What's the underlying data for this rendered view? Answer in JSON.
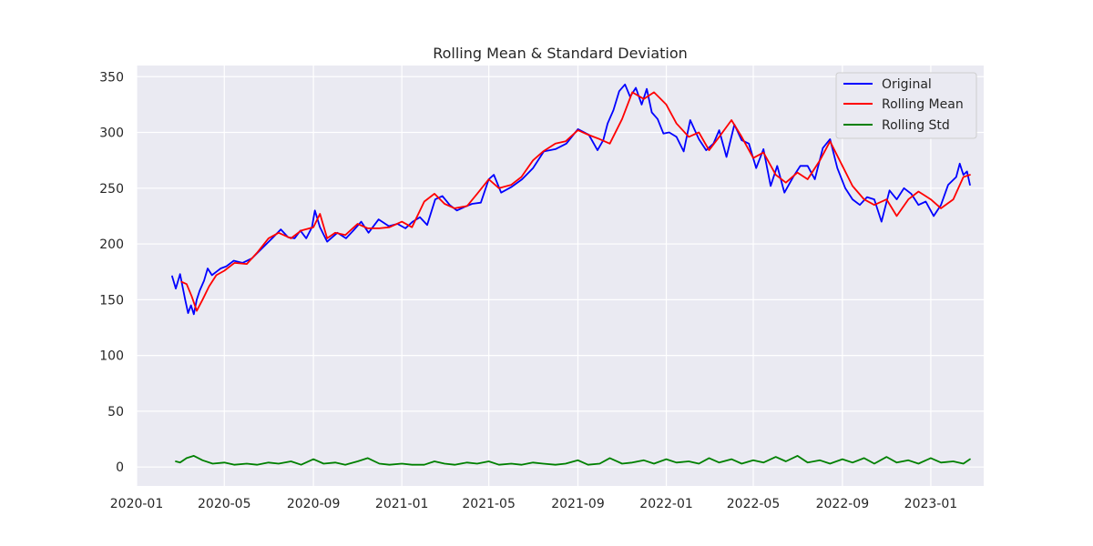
{
  "chart_data": {
    "type": "line",
    "title": "Rolling Mean & Standard Deviation",
    "xlabel": "",
    "ylabel": "",
    "xlim": [
      "2020-01-01",
      "2023-03-15"
    ],
    "ylim": [
      -17,
      360
    ],
    "grid": true,
    "legend_position": "top-right",
    "background_color": "#eaeaf2",
    "x_ticks": [
      {
        "label": "2020-01",
        "date": "2020-01-01"
      },
      {
        "label": "2020-05",
        "date": "2020-05-01"
      },
      {
        "label": "2020-09",
        "date": "2020-09-01"
      },
      {
        "label": "2021-01",
        "date": "2021-01-01"
      },
      {
        "label": "2021-05",
        "date": "2021-05-01"
      },
      {
        "label": "2021-09",
        "date": "2021-09-01"
      },
      {
        "label": "2022-01",
        "date": "2022-01-01"
      },
      {
        "label": "2022-05",
        "date": "2022-05-01"
      },
      {
        "label": "2022-09",
        "date": "2022-09-01"
      },
      {
        "label": "2023-01",
        "date": "2023-01-01"
      }
    ],
    "y_ticks": [
      0,
      50,
      100,
      150,
      200,
      250,
      300,
      350
    ],
    "series": [
      {
        "name": "Original",
        "color": "#0000ff",
        "x": [
          "2020-02-19",
          "2020-02-24",
          "2020-03-01",
          "2020-03-08",
          "2020-03-12",
          "2020-03-16",
          "2020-03-20",
          "2020-03-24",
          "2020-03-28",
          "2020-04-03",
          "2020-04-08",
          "2020-04-14",
          "2020-04-20",
          "2020-04-26",
          "2020-05-04",
          "2020-05-14",
          "2020-05-26",
          "2020-06-08",
          "2020-06-22",
          "2020-07-06",
          "2020-07-18",
          "2020-07-28",
          "2020-08-06",
          "2020-08-14",
          "2020-08-22",
          "2020-08-30",
          "2020-09-03",
          "2020-09-10",
          "2020-09-20",
          "2020-10-04",
          "2020-10-16",
          "2020-10-26",
          "2020-11-06",
          "2020-11-16",
          "2020-11-30",
          "2020-12-14",
          "2020-12-26",
          "2021-01-06",
          "2021-01-16",
          "2021-01-26",
          "2021-02-05",
          "2021-02-16",
          "2021-02-26",
          "2021-03-08",
          "2021-03-18",
          "2021-03-28",
          "2021-04-08",
          "2021-04-20",
          "2021-05-01",
          "2021-05-08",
          "2021-05-18",
          "2021-06-01",
          "2021-06-16",
          "2021-07-01",
          "2021-07-16",
          "2021-08-01",
          "2021-08-16",
          "2021-09-01",
          "2021-09-16",
          "2021-09-28",
          "2021-10-06",
          "2021-10-12",
          "2021-10-20",
          "2021-10-28",
          "2021-11-05",
          "2021-11-12",
          "2021-11-20",
          "2021-11-28",
          "2021-12-05",
          "2021-12-12",
          "2021-12-20",
          "2021-12-28",
          "2022-01-05",
          "2022-01-15",
          "2022-01-25",
          "2022-02-03",
          "2022-02-15",
          "2022-02-25",
          "2022-03-07",
          "2022-03-15",
          "2022-03-25",
          "2022-04-05",
          "2022-04-15",
          "2022-04-25",
          "2022-05-05",
          "2022-05-15",
          "2022-05-25",
          "2022-06-03",
          "2022-06-13",
          "2022-06-25",
          "2022-07-05",
          "2022-07-15",
          "2022-07-25",
          "2022-08-05",
          "2022-08-15",
          "2022-08-25",
          "2022-09-05",
          "2022-09-15",
          "2022-09-25",
          "2022-10-05",
          "2022-10-15",
          "2022-10-25",
          "2022-11-05",
          "2022-11-15",
          "2022-11-25",
          "2022-12-05",
          "2022-12-15",
          "2022-12-25",
          "2023-01-05",
          "2023-01-15",
          "2023-01-25",
          "2023-02-05",
          "2023-02-10",
          "2023-02-15",
          "2023-02-20",
          "2023-02-24"
        ],
        "values": [
          171,
          160,
          173,
          150,
          138,
          145,
          137,
          150,
          158,
          167,
          178,
          172,
          175,
          178,
          180,
          185,
          183,
          187,
          196,
          205,
          213,
          206,
          205,
          212,
          205,
          215,
          230,
          215,
          202,
          210,
          205,
          212,
          220,
          210,
          222,
          216,
          218,
          214,
          220,
          224,
          217,
          240,
          243,
          235,
          230,
          233,
          236,
          237,
          258,
          262,
          246,
          251,
          258,
          268,
          283,
          285,
          290,
          303,
          298,
          284,
          293,
          308,
          320,
          337,
          343,
          332,
          340,
          325,
          339,
          318,
          312,
          299,
          300,
          296,
          283,
          311,
          294,
          284,
          290,
          302,
          278,
          307,
          293,
          290,
          268,
          285,
          252,
          270,
          246,
          260,
          270,
          270,
          258,
          286,
          294,
          268,
          250,
          240,
          235,
          242,
          240,
          220,
          248,
          240,
          250,
          245,
          235,
          238,
          225,
          235,
          253,
          260,
          272,
          262,
          265,
          253
        ]
      },
      {
        "name": "Rolling Mean",
        "color": "#ff0000",
        "x": [
          "2020-03-03",
          "2020-03-10",
          "2020-03-17",
          "2020-03-24",
          "2020-04-01",
          "2020-04-10",
          "2020-04-20",
          "2020-05-01",
          "2020-05-15",
          "2020-06-01",
          "2020-06-15",
          "2020-07-01",
          "2020-07-15",
          "2020-08-01",
          "2020-08-15",
          "2020-09-01",
          "2020-09-10",
          "2020-09-20",
          "2020-10-01",
          "2020-10-15",
          "2020-11-01",
          "2020-11-15",
          "2020-12-01",
          "2020-12-15",
          "2021-01-01",
          "2021-01-15",
          "2021-02-01",
          "2021-02-15",
          "2021-03-01",
          "2021-03-15",
          "2021-04-01",
          "2021-04-15",
          "2021-05-01",
          "2021-05-15",
          "2021-06-01",
          "2021-06-15",
          "2021-07-01",
          "2021-07-15",
          "2021-08-01",
          "2021-08-15",
          "2021-09-01",
          "2021-09-15",
          "2021-10-01",
          "2021-10-15",
          "2021-11-01",
          "2021-11-15",
          "2021-12-01",
          "2021-12-15",
          "2022-01-01",
          "2022-01-15",
          "2022-02-01",
          "2022-02-15",
          "2022-03-01",
          "2022-03-15",
          "2022-04-01",
          "2022-04-15",
          "2022-05-01",
          "2022-05-15",
          "2022-06-01",
          "2022-06-15",
          "2022-07-01",
          "2022-07-15",
          "2022-08-01",
          "2022-08-15",
          "2022-09-01",
          "2022-09-15",
          "2022-10-01",
          "2022-10-15",
          "2022-11-01",
          "2022-11-15",
          "2022-12-01",
          "2022-12-15",
          "2023-01-01",
          "2023-01-15",
          "2023-02-01",
          "2023-02-15",
          "2023-02-24"
        ],
        "values": [
          166,
          164,
          153,
          140,
          150,
          162,
          172,
          176,
          183,
          182,
          192,
          205,
          210,
          205,
          212,
          215,
          227,
          205,
          210,
          208,
          218,
          214,
          214,
          215,
          220,
          215,
          238,
          245,
          236,
          232,
          234,
          245,
          258,
          250,
          253,
          260,
          275,
          283,
          290,
          292,
          302,
          298,
          294,
          290,
          312,
          336,
          330,
          336,
          325,
          308,
          296,
          300,
          284,
          296,
          311,
          296,
          277,
          282,
          262,
          255,
          264,
          258,
          275,
          292,
          270,
          252,
          240,
          235,
          240,
          225,
          240,
          247,
          240,
          232,
          240,
          260,
          262
        ]
      },
      {
        "name": "Rolling Std",
        "color": "#008000",
        "x": [
          "2020-02-24",
          "2020-03-01",
          "2020-03-10",
          "2020-03-20",
          "2020-04-01",
          "2020-04-15",
          "2020-05-01",
          "2020-05-15",
          "2020-06-01",
          "2020-06-15",
          "2020-07-01",
          "2020-07-15",
          "2020-08-01",
          "2020-08-15",
          "2020-09-01",
          "2020-09-15",
          "2020-10-01",
          "2020-10-15",
          "2020-11-01",
          "2020-11-15",
          "2020-12-01",
          "2020-12-15",
          "2021-01-01",
          "2021-01-15",
          "2021-02-01",
          "2021-02-15",
          "2021-03-01",
          "2021-03-15",
          "2021-04-01",
          "2021-04-15",
          "2021-05-01",
          "2021-05-15",
          "2021-06-01",
          "2021-06-15",
          "2021-07-01",
          "2021-07-15",
          "2021-08-01",
          "2021-08-15",
          "2021-09-01",
          "2021-09-15",
          "2021-10-01",
          "2021-10-15",
          "2021-11-01",
          "2021-11-15",
          "2021-12-01",
          "2021-12-15",
          "2022-01-01",
          "2022-01-15",
          "2022-02-01",
          "2022-02-15",
          "2022-03-01",
          "2022-03-15",
          "2022-04-01",
          "2022-04-15",
          "2022-05-01",
          "2022-05-15",
          "2022-06-01",
          "2022-06-15",
          "2022-07-01",
          "2022-07-15",
          "2022-08-01",
          "2022-08-15",
          "2022-09-01",
          "2022-09-15",
          "2022-10-01",
          "2022-10-15",
          "2022-11-01",
          "2022-11-15",
          "2022-12-01",
          "2022-12-15",
          "2023-01-01",
          "2023-01-15",
          "2023-02-01",
          "2023-02-15",
          "2023-02-24"
        ],
        "values": [
          5,
          4,
          8,
          10,
          6,
          3,
          4,
          2,
          3,
          2,
          4,
          3,
          5,
          2,
          7,
          3,
          4,
          2,
          5,
          8,
          3,
          2,
          3,
          2,
          2,
          5,
          3,
          2,
          4,
          3,
          5,
          2,
          3,
          2,
          4,
          3,
          2,
          3,
          6,
          2,
          3,
          8,
          3,
          4,
          6,
          3,
          7,
          4,
          5,
          3,
          8,
          4,
          7,
          3,
          6,
          4,
          9,
          5,
          10,
          4,
          6,
          3,
          7,
          4,
          8,
          3,
          9,
          4,
          6,
          3,
          8,
          4,
          5,
          3,
          7
        ]
      }
    ]
  }
}
